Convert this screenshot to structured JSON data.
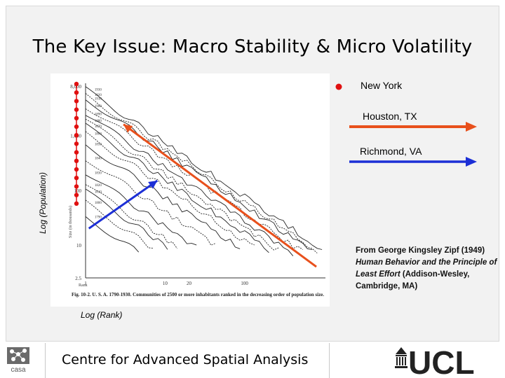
{
  "slide": {
    "title": "The Key Issue: Macro Stability & Micro Volatility",
    "ylabel": "Log (Population)",
    "xlabel": "Log (Rank)",
    "legend": {
      "new_york": "New York",
      "houston": "Houston, TX",
      "richmond": "Richmond, VA"
    },
    "citation": {
      "line1": "From George Kingsley Zipf (1949)",
      "book": "Human Behavior and the Principle of Least Effort",
      "line3": " (Addison-Wesley, Cambridge, MA)"
    },
    "footer": {
      "centre": "Centre for Advanced Spatial Analysis",
      "casa": "casa",
      "ucl": "UCL"
    }
  },
  "chart_data": {
    "type": "line",
    "scale": "log-log",
    "axis_ticks_y": [
      "8,000",
      "1,000",
      "100",
      "10",
      "2.5"
    ],
    "axis_ticks_x": [
      "1",
      "10",
      "20",
      "100"
    ],
    "y_axis_caption": "Size (in thousands)",
    "x_axis_caption": "Rank",
    "figure_caption": "Fig. 10-2. U. S. A. 1790-1930. Communities of 2500 or more inhabitants ranked in the decreasing order of population size.",
    "census_years": [
      "1930",
      "1920",
      "1910",
      "1900",
      "1890",
      "1880",
      "1870",
      "1860",
      "1850",
      "1840",
      "1830",
      "1820",
      "1810",
      "1800",
      "1790"
    ],
    "highlight_series": [
      {
        "name": "Houston, TX",
        "color": "#e8501c",
        "from": {
          "x": 800,
          "y": 4
        },
        "to": {
          "x": 3,
          "y": 1600
        }
      },
      {
        "name": "Richmond, VA",
        "color": "#1c2fd6",
        "from": {
          "x": 1.1,
          "y": 20
        },
        "to": {
          "x": 8,
          "y": 150
        }
      }
    ],
    "new_york_marker_color": "#e01010",
    "new_york_points": 15
  }
}
